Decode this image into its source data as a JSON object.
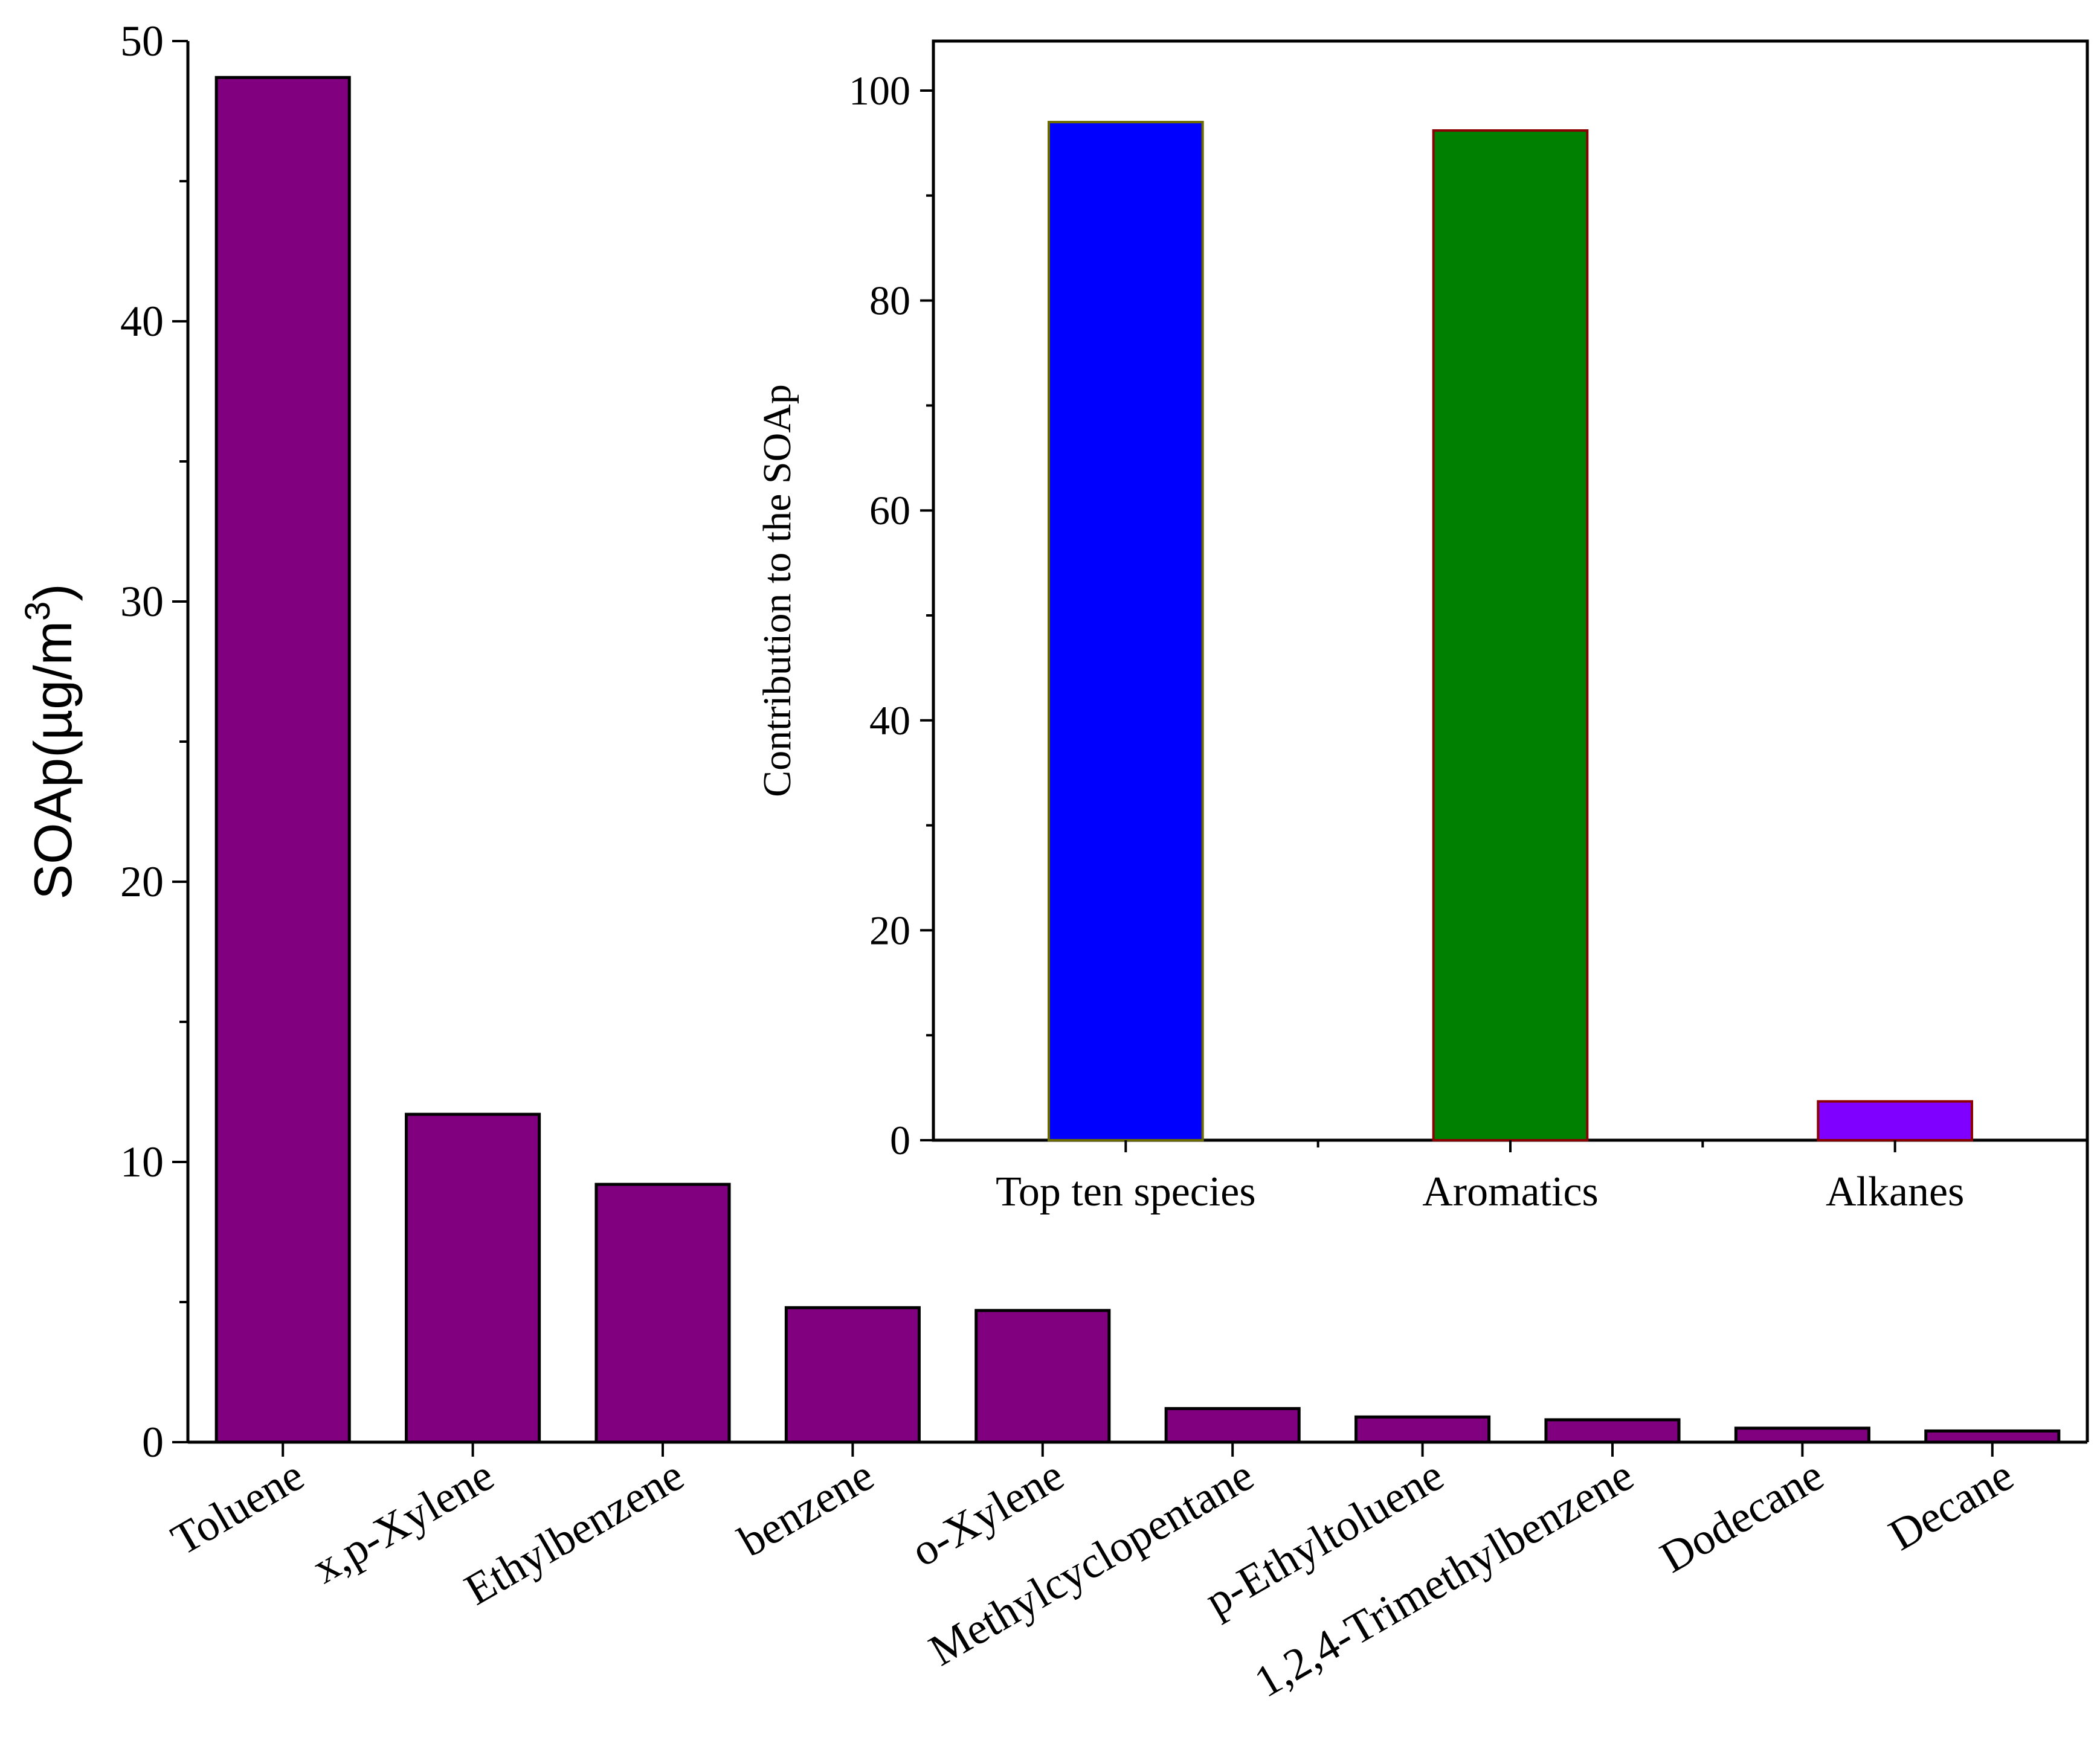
{
  "chart_data": [
    {
      "id": "main",
      "type": "bar",
      "title": "",
      "xlabel": "",
      "ylabel": "SOAp(µg/m",
      "ylabel_superscript": "3",
      "ylabel_close": ")",
      "ylim": [
        0,
        50
      ],
      "yticks": [
        0,
        10,
        20,
        30,
        40,
        50
      ],
      "categories": [
        "Toluene",
        "x,p-Xylene",
        "Ethylbenzene",
        "benzene",
        "o-Xylene",
        "Methylcyclopentane",
        "p-Ethyltoluene",
        "1,2,4-Trimethylbenzene",
        "Dodecane",
        "Decane"
      ],
      "values": [
        48.7,
        11.7,
        9.2,
        4.8,
        4.7,
        1.2,
        0.9,
        0.8,
        0.5,
        0.4
      ],
      "color": "#800080"
    },
    {
      "id": "inset",
      "type": "bar",
      "title": "",
      "xlabel": "",
      "ylabel": "Contribution to the SOAp",
      "ylim": [
        0,
        100
      ],
      "yticks": [
        0,
        20,
        40,
        60,
        80,
        100
      ],
      "categories": [
        "Top ten species",
        "Aromatics",
        "Alkanes"
      ],
      "values": [
        97,
        96.2,
        3.7
      ],
      "colors": [
        "#0000ff",
        "#008000",
        "#8000ff"
      ],
      "edge_colors": [
        "#6b6b00",
        "#8b0000",
        "#8b0000"
      ]
    }
  ]
}
